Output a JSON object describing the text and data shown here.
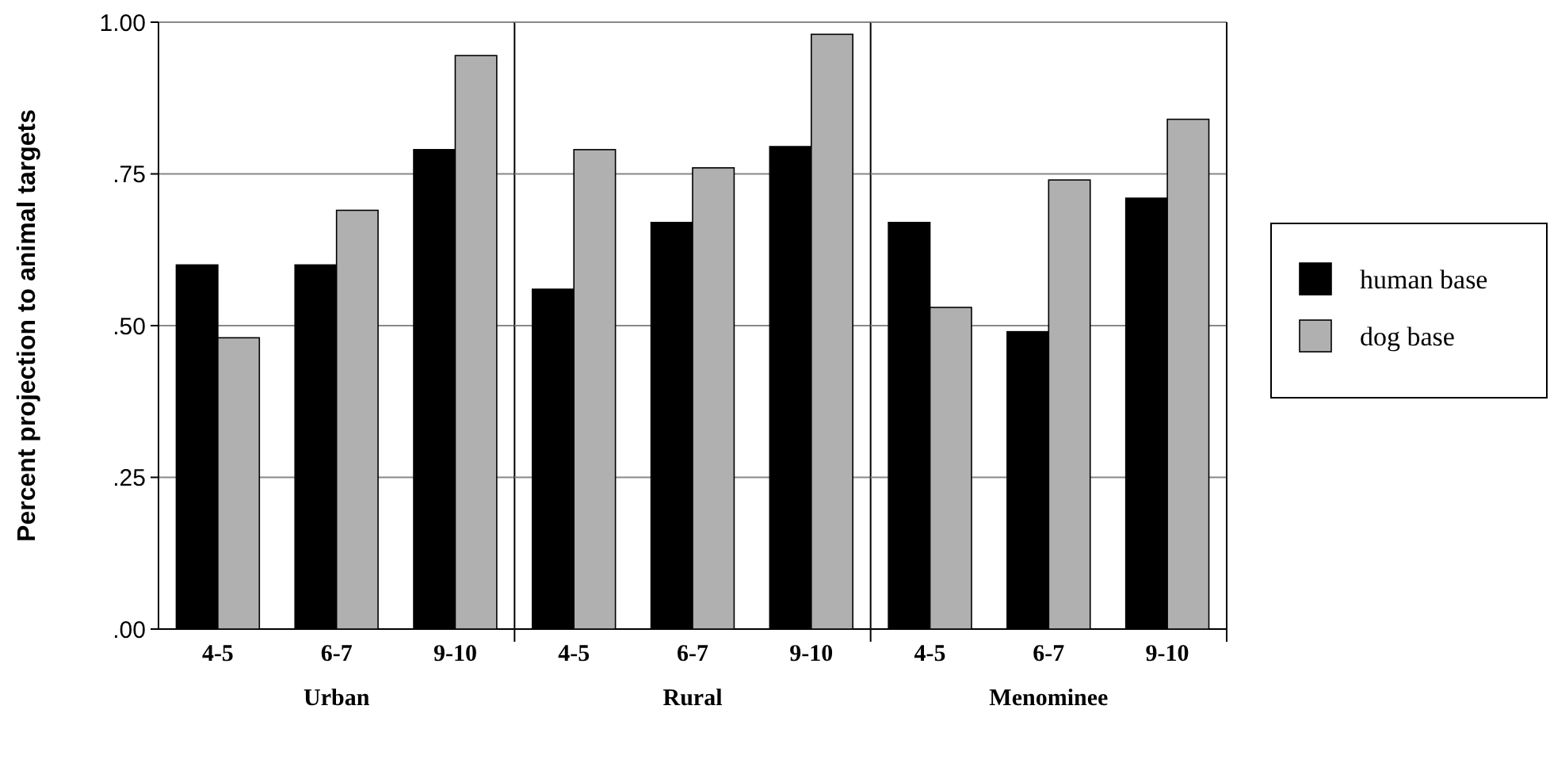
{
  "chart_data": [
    {
      "type": "bar",
      "ylabel": "Percent projection to animal targets",
      "xlabel": "Urban",
      "categories": [
        "4-5",
        "6-7",
        "9-10"
      ],
      "ylim": [
        0,
        1
      ],
      "yticks": [
        {
          "value": 0,
          "label": ".00"
        },
        {
          "value": 0.25,
          "label": ".25"
        },
        {
          "value": 0.5,
          "label": ".50"
        },
        {
          "value": 0.75,
          "label": ".75"
        },
        {
          "value": 1,
          "label": "1.00"
        }
      ],
      "grid": "y",
      "series": [
        {
          "color": "#000000",
          "values": [
            0.6,
            0.6,
            0.79
          ]
        },
        {
          "color": "#b0b0b0",
          "values": [
            0.48,
            0.69,
            0.945
          ]
        }
      ]
    },
    {
      "type": "bar",
      "xlabel": "Rural",
      "categories": [
        "4-5",
        "6-7",
        "9-10"
      ],
      "ylim": [
        0,
        1
      ],
      "yticks": [
        {
          "value": 0,
          "label": null
        },
        {
          "value": 0.25,
          "label": null
        },
        {
          "value": 0.5,
          "label": null
        },
        {
          "value": 0.75,
          "label": null
        },
        {
          "value": 1,
          "label": null
        }
      ],
      "tick_labels": "x",
      "grid": "y",
      "series": [
        {
          "color": "#000000",
          "values": [
            0.56,
            0.67,
            0.795
          ]
        },
        {
          "color": "#b0b0b0",
          "values": [
            0.79,
            0.76,
            0.98
          ]
        }
      ]
    },
    {
      "type": "bar",
      "xlabel": "Menominee",
      "categories": [
        "4-5",
        "6-7",
        "9-10"
      ],
      "ylim": [
        0,
        1
      ],
      "yticks": [
        {
          "value": 0,
          "label": null
        },
        {
          "value": 0.25,
          "label": null
        },
        {
          "value": 0.5,
          "label": null
        },
        {
          "value": 0.75,
          "label": null
        },
        {
          "value": 1,
          "label": null
        }
      ],
      "tick_labels": "x",
      "grid": "y",
      "legend": "right",
      "series": [
        {
          "name": "human base",
          "color": "#000000",
          "values": [
            0.67,
            0.49,
            0.71
          ]
        },
        {
          "name": "dog base",
          "color": "#b0b0b0",
          "values": [
            0.53,
            0.74,
            0.84
          ]
        }
      ]
    }
  ]
}
